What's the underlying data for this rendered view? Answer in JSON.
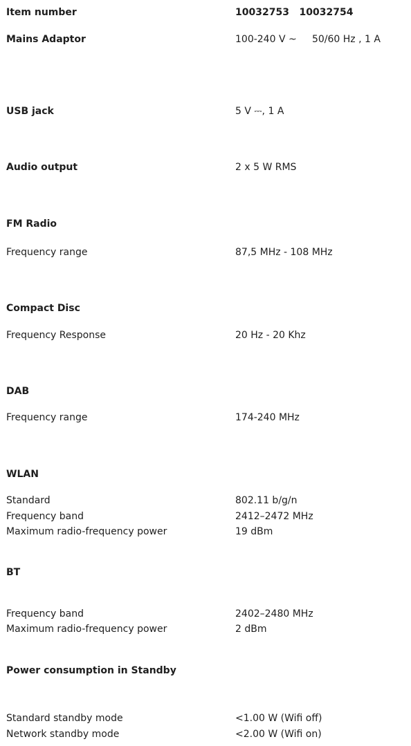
{
  "specs": [
    {
      "label": "Item number",
      "value": "10032753   10032754"
    },
    {
      "label": "Mains Adaptor",
      "value": "100-240 V ~     50/60 Hz , 1 A"
    },
    {
      "label": "USB jack",
      "value": "5 V ⎓, 1 A"
    },
    {
      "label": "Audio output",
      "value": "2 x 5 W RMS"
    }
  ],
  "sections": [
    {
      "title": "FM Radio",
      "items": [
        {
          "label": "Frequency range",
          "value": "87,5 MHz - 108 MHz"
        }
      ]
    },
    {
      "title": "Compact Disc",
      "items": [
        {
          "label": "Frequency Response",
          "value": "20 Hz - 20 Khz"
        }
      ]
    },
    {
      "title": "DAB",
      "items": [
        {
          "label": "Frequency range",
          "value": "174-240 MHz"
        }
      ]
    },
    {
      "title": "WLAN",
      "items": [
        {
          "label": "Standard",
          "value": "802.11 b/g/n"
        },
        {
          "label": "Frequency band",
          "value": "2412–2472 MHz"
        },
        {
          "label": "Maximum radio-frequency power",
          "value": "19 dBm"
        }
      ]
    },
    {
      "title": "BT",
      "items": [
        {
          "label": "Frequency band",
          "value": "2402–2480 MHz"
        },
        {
          "label": "Maximum radio-frequency power",
          "value": "2 dBm"
        }
      ]
    },
    {
      "title": "Power consumption in Standby",
      "items": [
        {
          "label": "Standard standby mode",
          "value": "<1.00 W (Wifi off)"
        },
        {
          "label": "Network standby mode",
          "value": "<2.00 W (Wifi on)"
        }
      ]
    }
  ]
}
